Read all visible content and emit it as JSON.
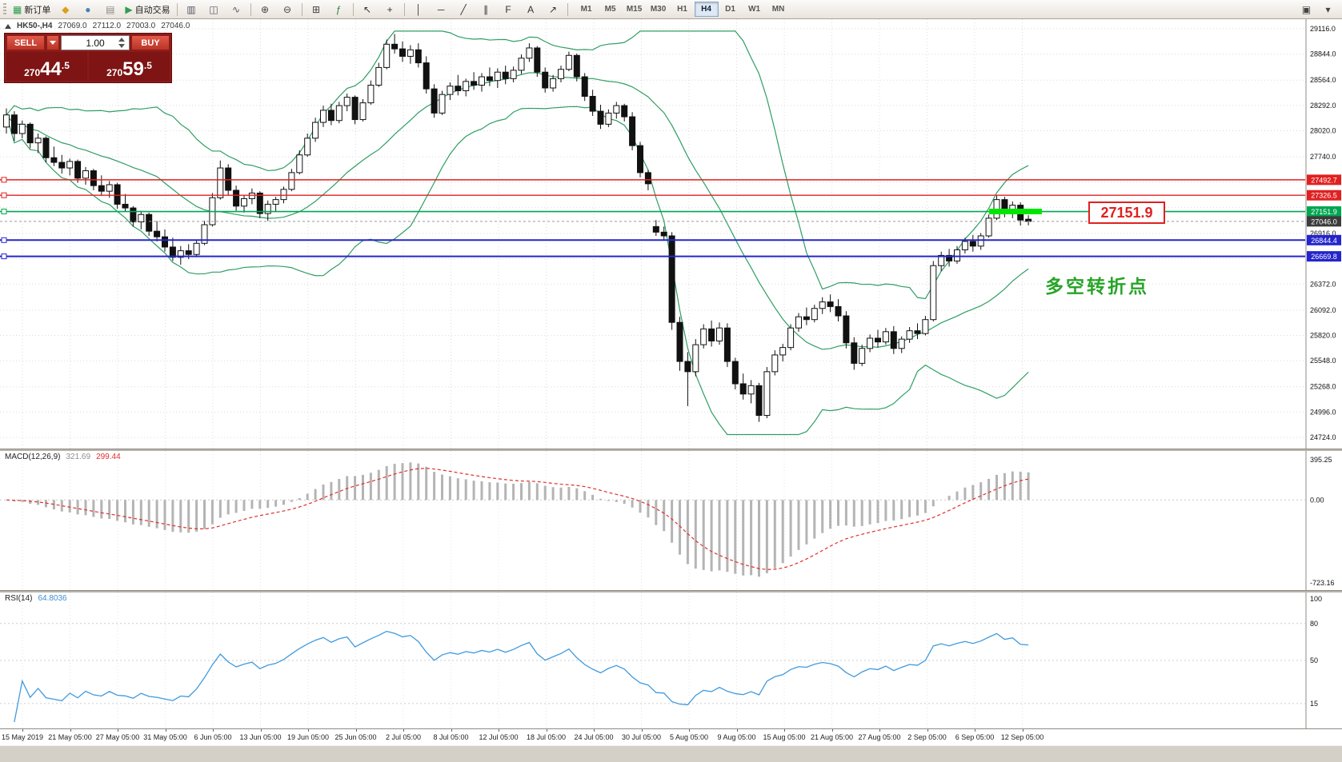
{
  "toolbar": {
    "items": [
      {
        "name": "new-order",
        "glyph": "▦",
        "color": "#2e9e4f",
        "label": "新订单"
      },
      {
        "name": "profile",
        "glyph": "◆",
        "color": "#d9a01d"
      },
      {
        "name": "market-watch",
        "glyph": "●",
        "color": "#4a7ebb"
      },
      {
        "name": "navigator",
        "glyph": "▤",
        "color": "#8a8a8a"
      },
      {
        "name": "auto-trading",
        "glyph": "▶",
        "color": "#2e9e4f",
        "label": "自动交易"
      },
      {
        "sep": true
      },
      {
        "name": "bar-chart-type",
        "glyph": "▥",
        "color": "#555566"
      },
      {
        "name": "candlestick-type",
        "glyph": "◫",
        "color": "#555566"
      },
      {
        "name": "line-chart-type",
        "glyph": "∿",
        "color": "#555566"
      },
      {
        "sep": true
      },
      {
        "name": "zoom-in",
        "glyph": "⊕",
        "color": "#444444"
      },
      {
        "name": "zoom-out",
        "glyph": "⊖",
        "color": "#444444"
      },
      {
        "sep": true
      },
      {
        "name": "tile-windows",
        "glyph": "⊞",
        "color": "#444444"
      },
      {
        "name": "indicators-list",
        "glyph": "ƒ",
        "color": "#2e7e3e"
      },
      {
        "sep": true
      },
      {
        "name": "cursor-tool",
        "glyph": "↖",
        "color": "#333333"
      },
      {
        "name": "crosshair-tool",
        "glyph": "+",
        "color": "#333333"
      },
      {
        "sep": true
      },
      {
        "name": "vertical-line-tool",
        "glyph": "│",
        "color": "#333333"
      },
      {
        "name": "horizontal-line-tool",
        "glyph": "─",
        "color": "#333333"
      },
      {
        "name": "trendline-tool",
        "glyph": "╱",
        "color": "#333333"
      },
      {
        "name": "channel-tool",
        "glyph": "∥",
        "color": "#333333"
      },
      {
        "name": "fibonacci-tool",
        "glyph": "F",
        "color": "#333333"
      },
      {
        "name": "text-tool",
        "glyph": "A",
        "color": "#333333"
      },
      {
        "name": "arrows-tool",
        "glyph": "↗",
        "color": "#333333"
      },
      {
        "sep": true
      }
    ],
    "timeframes": [
      "M1",
      "M5",
      "M15",
      "M30",
      "H1",
      "H4",
      "D1",
      "W1",
      "MN"
    ],
    "active_timeframe": "H4",
    "right_items": [
      {
        "name": "new-chart",
        "glyph": "▣",
        "color": "#444444"
      },
      {
        "name": "window-menu",
        "glyph": "▾",
        "color": "#444444"
      }
    ]
  },
  "chart": {
    "symbol_header": "HK50-,H4",
    "ohlc": {
      "open": "27069.0",
      "high": "27112.0",
      "low": "27003.0",
      "close": "27046.0"
    },
    "trade_panel": {
      "sell_label": "SELL",
      "buy_label": "BUY",
      "volume": "1.00",
      "sell_price": "27044.5",
      "buy_price": "27059.5"
    },
    "annotation_price": "27151.9",
    "annotation_text": "多空转折点",
    "levels": [
      {
        "price": 27492.7,
        "label": "27492.7",
        "color": "#e02020",
        "width": 1.4
      },
      {
        "price": 27326.5,
        "label": "27326.5",
        "color": "#e02020",
        "width": 1.4
      },
      {
        "price": 27151.9,
        "label": "27151.9",
        "color": "#00a651",
        "width": 1.6
      },
      {
        "price": 26844.4,
        "label": "26844.4",
        "color": "#2525cc",
        "width": 2
      },
      {
        "price": 26669.8,
        "label": "26669.8",
        "color": "#2525cc",
        "width": 2
      }
    ],
    "highlight_segment": {
      "price": 27151.9,
      "color": "#00e600"
    },
    "current_price": {
      "price": 27046.0,
      "label": "27046.0",
      "color": "#3c3c3c"
    },
    "y_axis_labels": [
      "29116.0",
      "28844.0",
      "28564.0",
      "28292.0",
      "28020.0",
      "27740.0",
      "26916.0",
      "26372.0",
      "26092.0",
      "25820.0",
      "25548.0",
      "25268.0",
      "24996.0",
      "24724.0"
    ],
    "grid_values": [
      29116,
      28844,
      28564,
      28292,
      28020,
      27740,
      27468,
      27196,
      26916,
      26644,
      26372,
      26092,
      25820,
      25548,
      25268,
      24996,
      24724
    ]
  },
  "chart_data": {
    "type": "candlestick",
    "symbol": "HK50",
    "timeframe": "H4",
    "ylim": [
      24724.0,
      29116.0
    ],
    "overlays": {
      "bollinger": {
        "period": 20,
        "deviation": 2,
        "color": "#2f9e63"
      }
    },
    "x_labels": [
      "15 May 2019",
      "21 May 05:00",
      "27 May 05:00",
      "31 May 05:00",
      "6 Jun 05:00",
      "13 Jun 05:00",
      "19 Jun 05:00",
      "25 Jun 05:00",
      "2 Jul 05:00",
      "8 Jul 05:00",
      "12 Jul 05:00",
      "18 Jul 05:00",
      "24 Jul 05:00",
      "30 Jul 05:00",
      "5 Aug 05:00",
      "9 Aug 05:00",
      "15 Aug 05:00",
      "21 Aug 05:00",
      "27 Aug 05:00",
      "2 Sep 05:00",
      "6 Sep 05:00",
      "12 Sep 05:00"
    ],
    "candles": [
      [
        28060,
        28260,
        27990,
        28190
      ],
      [
        28190,
        28230,
        27910,
        27990
      ],
      [
        27990,
        28130,
        27940,
        28090
      ],
      [
        28090,
        28110,
        27830,
        27890
      ],
      [
        27890,
        27990,
        27780,
        27940
      ],
      [
        27940,
        27960,
        27680,
        27730
      ],
      [
        27730,
        27850,
        27640,
        27680
      ],
      [
        27680,
        27760,
        27560,
        27620
      ],
      [
        27620,
        27720,
        27540,
        27690
      ],
      [
        27690,
        27710,
        27460,
        27510
      ],
      [
        27510,
        27630,
        27440,
        27590
      ],
      [
        27590,
        27610,
        27380,
        27430
      ],
      [
        27430,
        27540,
        27320,
        27370
      ],
      [
        27370,
        27480,
        27300,
        27440
      ],
      [
        27440,
        27460,
        27180,
        27230
      ],
      [
        27230,
        27340,
        27150,
        27190
      ],
      [
        27190,
        27210,
        26990,
        27040
      ],
      [
        27040,
        27160,
        26960,
        27120
      ],
      [
        27120,
        27140,
        26890,
        26940
      ],
      [
        26940,
        27050,
        26830,
        26880
      ],
      [
        26880,
        26960,
        26720,
        26770
      ],
      [
        26770,
        26870,
        26620,
        26660
      ],
      [
        26660,
        26780,
        26580,
        26730
      ],
      [
        26730,
        26800,
        26640,
        26690
      ],
      [
        26690,
        26840,
        26660,
        26810
      ],
      [
        26810,
        27050,
        26790,
        27010
      ],
      [
        27010,
        27350,
        26990,
        27300
      ],
      [
        27300,
        27700,
        27280,
        27620
      ],
      [
        27620,
        27660,
        27330,
        27380
      ],
      [
        27380,
        27430,
        27160,
        27210
      ],
      [
        27210,
        27330,
        27140,
        27290
      ],
      [
        27290,
        27400,
        27230,
        27350
      ],
      [
        27350,
        27370,
        27080,
        27130
      ],
      [
        27130,
        27270,
        27050,
        27230
      ],
      [
        27230,
        27310,
        27150,
        27280
      ],
      [
        27280,
        27420,
        27240,
        27390
      ],
      [
        27390,
        27610,
        27370,
        27570
      ],
      [
        27570,
        27810,
        27550,
        27760
      ],
      [
        27760,
        27990,
        27740,
        27940
      ],
      [
        27940,
        28160,
        27900,
        28110
      ],
      [
        28110,
        28290,
        28060,
        28240
      ],
      [
        28240,
        28310,
        28080,
        28130
      ],
      [
        28130,
        28330,
        28100,
        28290
      ],
      [
        28290,
        28420,
        28230,
        28380
      ],
      [
        28380,
        28400,
        28090,
        28140
      ],
      [
        28140,
        28360,
        28120,
        28320
      ],
      [
        28320,
        28560,
        28300,
        28510
      ],
      [
        28510,
        28750,
        28490,
        28700
      ],
      [
        28700,
        29000,
        28680,
        28950
      ],
      [
        28950,
        29060,
        28850,
        28900
      ],
      [
        28900,
        28980,
        28760,
        28820
      ],
      [
        28820,
        28940,
        28740,
        28890
      ],
      [
        28890,
        28960,
        28700,
        28750
      ],
      [
        28750,
        28820,
        28420,
        28470
      ],
      [
        28470,
        28520,
        28160,
        28210
      ],
      [
        28210,
        28450,
        28190,
        28410
      ],
      [
        28410,
        28540,
        28350,
        28500
      ],
      [
        28500,
        28620,
        28400,
        28450
      ],
      [
        28450,
        28580,
        28390,
        28550
      ],
      [
        28550,
        28650,
        28460,
        28510
      ],
      [
        28510,
        28640,
        28440,
        28600
      ],
      [
        28600,
        28700,
        28500,
        28560
      ],
      [
        28560,
        28690,
        28480,
        28650
      ],
      [
        28650,
        28720,
        28520,
        28580
      ],
      [
        28580,
        28710,
        28540,
        28670
      ],
      [
        28670,
        28840,
        28630,
        28800
      ],
      [
        28800,
        28960,
        28760,
        28910
      ],
      [
        28910,
        28930,
        28600,
        28650
      ],
      [
        28650,
        28700,
        28430,
        28480
      ],
      [
        28480,
        28620,
        28440,
        28580
      ],
      [
        28580,
        28720,
        28540,
        28680
      ],
      [
        28680,
        28870,
        28660,
        28830
      ],
      [
        28830,
        28850,
        28550,
        28600
      ],
      [
        28600,
        28640,
        28340,
        28390
      ],
      [
        28390,
        28460,
        28180,
        28230
      ],
      [
        28230,
        28300,
        28040,
        28090
      ],
      [
        28090,
        28250,
        28060,
        28210
      ],
      [
        28210,
        28330,
        28150,
        28290
      ],
      [
        28290,
        28310,
        28120,
        28170
      ],
      [
        28170,
        28220,
        27810,
        27860
      ],
      [
        27860,
        27900,
        27520,
        27570
      ],
      [
        27570,
        27600,
        27380,
        27450
      ],
      [
        26990,
        27060,
        26890,
        26930
      ],
      [
        26930,
        26990,
        26840,
        26890
      ],
      [
        26890,
        26930,
        25880,
        25960
      ],
      [
        25960,
        26020,
        25440,
        25540
      ],
      [
        25540,
        25640,
        25060,
        25430
      ],
      [
        25430,
        25780,
        25380,
        25720
      ],
      [
        25720,
        25940,
        25680,
        25890
      ],
      [
        25890,
        25980,
        25700,
        25760
      ],
      [
        25760,
        25960,
        25720,
        25900
      ],
      [
        25900,
        25950,
        25480,
        25540
      ],
      [
        25540,
        25580,
        25240,
        25300
      ],
      [
        25300,
        25410,
        25130,
        25190
      ],
      [
        25190,
        25340,
        25090,
        25280
      ],
      [
        25280,
        25310,
        24890,
        24960
      ],
      [
        24960,
        25480,
        24930,
        25430
      ],
      [
        25430,
        25660,
        25390,
        25610
      ],
      [
        25610,
        25730,
        25540,
        25690
      ],
      [
        25690,
        25940,
        25660,
        25900
      ],
      [
        25900,
        26060,
        25860,
        26020
      ],
      [
        26020,
        26120,
        25930,
        25990
      ],
      [
        25990,
        26150,
        25960,
        26110
      ],
      [
        26110,
        26230,
        26050,
        26180
      ],
      [
        26180,
        26260,
        26070,
        26130
      ],
      [
        26130,
        26210,
        25970,
        26030
      ],
      [
        26030,
        26080,
        25680,
        25740
      ],
      [
        25740,
        25800,
        25450,
        25520
      ],
      [
        25520,
        25720,
        25490,
        25680
      ],
      [
        25680,
        25830,
        25640,
        25790
      ],
      [
        25790,
        25880,
        25690,
        25750
      ],
      [
        25750,
        25900,
        25720,
        25860
      ],
      [
        25860,
        25920,
        25620,
        25680
      ],
      [
        25680,
        25810,
        25630,
        25780
      ],
      [
        25780,
        25910,
        25740,
        25870
      ],
      [
        25870,
        25950,
        25780,
        25840
      ],
      [
        25840,
        26030,
        25820,
        25990
      ],
      [
        25990,
        26620,
        25970,
        26570
      ],
      [
        26570,
        26720,
        26510,
        26680
      ],
      [
        26680,
        26750,
        26560,
        26620
      ],
      [
        26620,
        26780,
        26590,
        26740
      ],
      [
        26740,
        26870,
        26700,
        26830
      ],
      [
        26830,
        26900,
        26720,
        26780
      ],
      [
        26780,
        26920,
        26740,
        26890
      ],
      [
        26890,
        27120,
        26870,
        27080
      ],
      [
        27080,
        27330,
        27060,
        27280
      ],
      [
        27280,
        27310,
        27090,
        27140
      ],
      [
        27140,
        27260,
        27080,
        27220
      ],
      [
        27220,
        27250,
        27000,
        27060
      ],
      [
        27069,
        27112,
        27003,
        27046
      ]
    ]
  },
  "macd": {
    "label": "MACD(12,26,9)",
    "value_main": "321.69",
    "value_signal": "299.44",
    "axis": [
      "395.25",
      "0.00",
      "-723.16"
    ],
    "params": {
      "fast": 12,
      "slow": 26,
      "signal": 9
    }
  },
  "rsi": {
    "label": "RSI(14)",
    "value": "64.8036",
    "period": 14,
    "scale_labels": [
      "100",
      "80",
      "50",
      "15"
    ],
    "level_lines": [
      80,
      50,
      15
    ]
  }
}
